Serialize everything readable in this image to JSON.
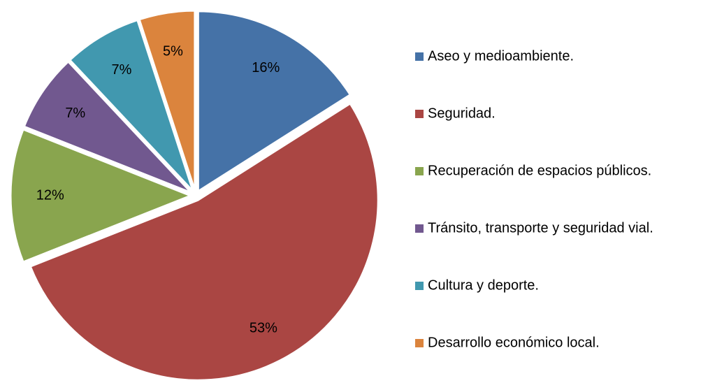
{
  "chart_data": {
    "type": "pie",
    "categories": [
      "Aseo y medioambiente.",
      "Seguridad.",
      "Recuperación de espacios públicos.",
      "Tránsito, transporte y seguridad vial.",
      "Cultura y deporte.",
      "Desarrollo económico local."
    ],
    "values": [
      16,
      53,
      12,
      7,
      7,
      5
    ],
    "value_labels": [
      "16%",
      "53%",
      "12%",
      "7%",
      "7%",
      "5%"
    ],
    "colors": [
      "#4572a7",
      "#aa4643",
      "#89a54e",
      "#71588f",
      "#4198af",
      "#db843d"
    ],
    "legend": "right"
  }
}
